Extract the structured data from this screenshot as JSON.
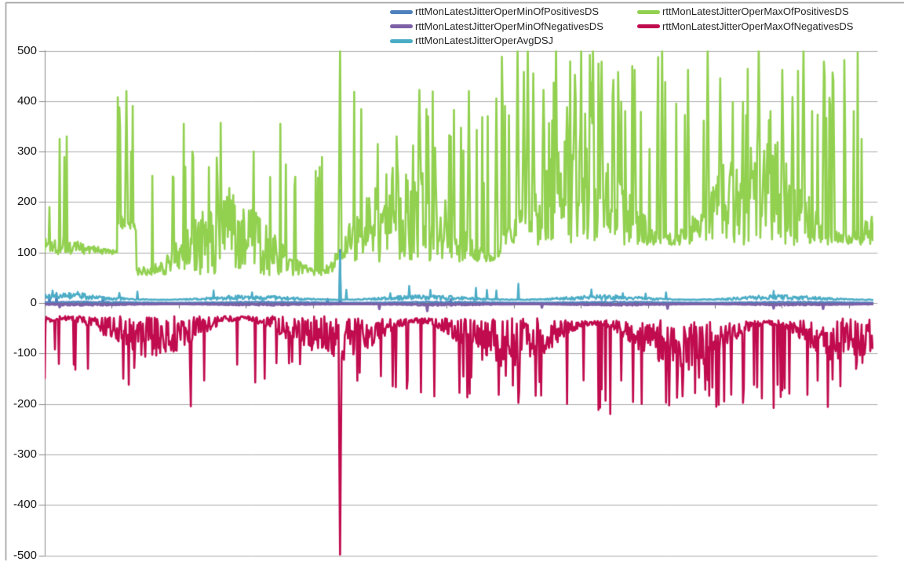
{
  "chart_data": {
    "type": "line",
    "title": "",
    "xlabel": "",
    "ylabel": "",
    "ylim": [
      -500,
      500
    ],
    "yticks": [
      500,
      400,
      300,
      200,
      100,
      0,
      -100,
      -200,
      -300,
      -400,
      -500
    ],
    "grid": true,
    "legend_position": "top",
    "x_axis": {
      "type": "category",
      "labels_visible": false,
      "tick_marks": 13
    },
    "axis_colors": {
      "gridline": "#ABABAB",
      "axis": "#8A8A8A",
      "zero_line": "#6E6E6E",
      "border": "#8E8E8E",
      "tick_label": "#141414"
    },
    "series": [
      {
        "name": "rttMonLatestJitterOperMinOfPositivesDS",
        "color": "#4F81BD",
        "line_width": 2.4,
        "phase": 0,
        "segments": [
          {
            "x0": 0,
            "x1": 1,
            "near": 0.5,
            "far": 3,
            "spike_p": 0.004,
            "s_near": 5,
            "s_far": 14
          }
        ],
        "spikes": [
          [
            0.006,
            16
          ],
          [
            0.014,
            20
          ],
          [
            0.07,
            12
          ],
          [
            0.356,
            105
          ],
          [
            0.49,
            8
          ]
        ]
      },
      {
        "name": "rttMonLatestJitterOperMaxOfPositivesDS",
        "color": "#92D050",
        "line_width": 2.6,
        "phase": 1.3,
        "segments": [
          {
            "x0": 0.0,
            "x1": 0.015,
            "near": 95,
            "far": 135,
            "spike_p": 0.02,
            "s_near": 140,
            "s_far": 190
          },
          {
            "x0": 0.015,
            "x1": 0.032,
            "near": 95,
            "far": 140,
            "spike_p": 0.12,
            "s_near": 200,
            "s_far": 330
          },
          {
            "x0": 0.032,
            "x1": 0.088,
            "near": 96,
            "far": 128,
            "spike_p": 0.015,
            "s_near": 132,
            "s_far": 165
          },
          {
            "x0": 0.088,
            "x1": 0.11,
            "near": 140,
            "far": 310,
            "spike_p": 0.2,
            "s_near": 320,
            "s_far": 420
          },
          {
            "x0": 0.11,
            "x1": 0.35,
            "near": 55,
            "far": 215,
            "spike_p": 0.05,
            "s_near": 225,
            "s_far": 300
          },
          {
            "x0": 0.35,
            "x1": 0.363,
            "near": 85,
            "far": 150,
            "spike_p": 0,
            "s_near": 0,
            "s_far": 0
          },
          {
            "x0": 0.363,
            "x1": 0.55,
            "near": 80,
            "far": 285,
            "spike_p": 0.06,
            "s_near": 300,
            "s_far": 420
          },
          {
            "x0": 0.55,
            "x1": 1.0,
            "near": 115,
            "far": 345,
            "spike_p": 0.09,
            "s_near": 355,
            "s_far": 505
          }
        ],
        "spikes": [
          [
            0.006,
            190
          ],
          [
            0.018,
            325
          ],
          [
            0.027,
            330
          ],
          [
            0.099,
            420
          ],
          [
            0.104,
            300
          ],
          [
            0.13,
            252
          ],
          [
            0.168,
            355
          ],
          [
            0.178,
            300
          ],
          [
            0.212,
            357
          ],
          [
            0.252,
            300
          ],
          [
            0.284,
            355
          ],
          [
            0.302,
            250
          ],
          [
            0.33,
            248
          ],
          [
            0.356,
            505
          ],
          [
            0.402,
            315
          ],
          [
            0.425,
            330
          ],
          [
            0.445,
            312
          ],
          [
            0.452,
            422
          ],
          [
            0.47,
            262
          ],
          [
            0.49,
            330
          ],
          [
            0.505,
            302
          ],
          [
            0.512,
            420
          ],
          [
            0.53,
            238
          ],
          [
            0.545,
            405
          ],
          [
            0.56,
            372
          ],
          [
            0.571,
            505
          ],
          [
            0.578,
            458
          ],
          [
            0.583,
            505
          ],
          [
            0.59,
            455
          ],
          [
            0.602,
            422
          ],
          [
            0.617,
            505
          ],
          [
            0.63,
            388
          ],
          [
            0.64,
            452
          ],
          [
            0.652,
            375
          ],
          [
            0.662,
            505
          ],
          [
            0.672,
            478
          ],
          [
            0.686,
            442
          ],
          [
            0.7,
            380
          ],
          [
            0.712,
            462
          ],
          [
            0.73,
            305
          ],
          [
            0.745,
            505
          ],
          [
            0.762,
            395
          ],
          [
            0.776,
            462
          ],
          [
            0.8,
            505
          ],
          [
            0.815,
            445
          ],
          [
            0.83,
            398
          ],
          [
            0.846,
            372
          ],
          [
            0.862,
            505
          ],
          [
            0.876,
            380
          ],
          [
            0.89,
            462
          ],
          [
            0.902,
            408
          ],
          [
            0.916,
            505
          ],
          [
            0.926,
            380
          ],
          [
            0.94,
            478
          ],
          [
            0.952,
            442
          ],
          [
            0.966,
            342
          ],
          [
            0.976,
            380
          ],
          [
            0.986,
            325
          ]
        ]
      },
      {
        "name": "rttMonLatestJitterOperMinOfNegativesDS",
        "color": "#7D60A7",
        "line_width": 3.2,
        "phase": 0,
        "segments": [
          {
            "x0": 0,
            "x1": 1,
            "near": -2,
            "far": -5,
            "spike_p": 0.003,
            "s_near": -7,
            "s_far": -12
          }
        ],
        "spikes": [
          [
            0.462,
            -16
          ],
          [
            0.6,
            -9
          ]
        ]
      },
      {
        "name": "rttMonLatestJitterOperMaxOfNegativesDS",
        "color": "#C00B4E",
        "line_width": 2.6,
        "phase": 4.0,
        "segments": [
          {
            "x0": 0.0,
            "x1": 0.355,
            "near": -26,
            "far": -108,
            "spike_p": 0.03,
            "s_near": -115,
            "s_far": -160
          },
          {
            "x0": 0.355,
            "x1": 0.363,
            "near": -60,
            "far": -120,
            "spike_p": 0,
            "s_near": 0,
            "s_far": 0
          },
          {
            "x0": 0.363,
            "x1": 0.6,
            "near": -30,
            "far": -128,
            "spike_p": 0.05,
            "s_near": -135,
            "s_far": -190
          },
          {
            "x0": 0.6,
            "x1": 0.95,
            "near": -34,
            "far": -142,
            "spike_p": 0.07,
            "s_near": -148,
            "s_far": -215
          },
          {
            "x0": 0.95,
            "x1": 1.0,
            "near": -30,
            "far": -120,
            "spike_p": 0.05,
            "s_near": -128,
            "s_far": -170
          }
        ],
        "spikes": [
          [
            0.012,
            -92
          ],
          [
            0.095,
            -150
          ],
          [
            0.101,
            -162
          ],
          [
            0.176,
            -205
          ],
          [
            0.232,
            -122
          ],
          [
            0.356,
            -505
          ],
          [
            0.42,
            -165
          ],
          [
            0.47,
            -185
          ],
          [
            0.5,
            -178
          ],
          [
            0.548,
            -182
          ],
          [
            0.572,
            -198
          ],
          [
            0.63,
            -200
          ],
          [
            0.668,
            -212
          ],
          [
            0.682,
            -220
          ],
          [
            0.72,
            -200
          ],
          [
            0.77,
            -185
          ],
          [
            0.82,
            -195
          ],
          [
            0.88,
            -208
          ],
          [
            0.92,
            -182
          ],
          [
            0.96,
            -165
          ]
        ]
      },
      {
        "name": "rttMonLatestJitterOperAvgDSJ",
        "color": "#4BACC6",
        "line_width": 2.4,
        "phase": 0.5,
        "segments": [
          {
            "x0": 0.0,
            "x1": 0.05,
            "near": 8,
            "far": 20,
            "spike_p": 0.02,
            "s_near": 21,
            "s_far": 26
          },
          {
            "x0": 0.05,
            "x1": 1.0,
            "near": 6,
            "far": 16,
            "spike_p": 0.012,
            "s_near": 18,
            "s_far": 30
          }
        ],
        "spikes": [
          [
            0.04,
            22
          ],
          [
            0.09,
            20
          ],
          [
            0.25,
            21
          ],
          [
            0.356,
            98
          ],
          [
            0.44,
            34
          ],
          [
            0.465,
            26
          ],
          [
            0.52,
            30
          ],
          [
            0.545,
            25
          ],
          [
            0.572,
            38
          ],
          [
            0.66,
            27
          ],
          [
            0.75,
            21
          ],
          [
            0.88,
            24
          ]
        ]
      }
    ],
    "render": {
      "seed": 1337,
      "samples": 1056,
      "draw_order": [
        1,
        0,
        2,
        3,
        4
      ]
    }
  },
  "legend": {
    "items": [
      {
        "series": 0,
        "label": "rttMonLatestJitterOperMinOfPositivesDS"
      },
      {
        "series": 1,
        "label": "rttMonLatestJitterOperMaxOfPositivesDS"
      },
      {
        "series": 2,
        "label": "rttMonLatestJitterOperMinOfNegativesDS"
      },
      {
        "series": 3,
        "label": "rttMonLatestJitterOperMaxOfNegativesDS"
      },
      {
        "series": 4,
        "label": "rttMonLatestJitterOperAvgDSJ"
      }
    ]
  }
}
